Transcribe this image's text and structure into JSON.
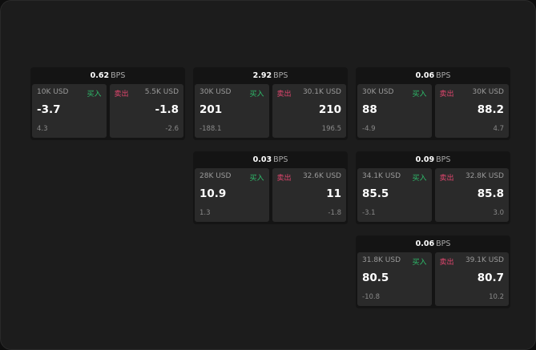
{
  "bps_unit": "BPS",
  "buy_label": "买入",
  "sell_label": "卖出",
  "colors": {
    "buy": "#2ebd6b",
    "sell": "#e0466e"
  },
  "cards": [
    {
      "bps": "0.62",
      "bid": {
        "size": "10K USD",
        "price": "-3.7",
        "change": "4.3"
      },
      "ask": {
        "size": "5.5K USD",
        "price": "-1.8",
        "change": "-2.6"
      }
    },
    {
      "bps": "2.92",
      "bid": {
        "size": "30K USD",
        "price": "201",
        "change": "-188.1"
      },
      "ask": {
        "size": "30.1K USD",
        "price": "210",
        "change": "196.5"
      }
    },
    {
      "bps": "0.06",
      "bid": {
        "size": "30K USD",
        "price": "88",
        "change": "-4.9"
      },
      "ask": {
        "size": "30K USD",
        "price": "88.2",
        "change": "4.7"
      }
    },
    {
      "bps": "0.03",
      "bid": {
        "size": "28K USD",
        "price": "10.9",
        "change": "1.3"
      },
      "ask": {
        "size": "32.6K USD",
        "price": "11",
        "change": "-1.8"
      }
    },
    {
      "bps": "0.09",
      "bid": {
        "size": "34.1K USD",
        "price": "85.5",
        "change": "-3.1"
      },
      "ask": {
        "size": "32.8K USD",
        "price": "85.8",
        "change": "3.0"
      }
    },
    {
      "bps": "0.06",
      "bid": {
        "size": "31.8K USD",
        "price": "80.5",
        "change": "-10.8"
      },
      "ask": {
        "size": "39.1K USD",
        "price": "80.7",
        "change": "10.2"
      }
    }
  ]
}
